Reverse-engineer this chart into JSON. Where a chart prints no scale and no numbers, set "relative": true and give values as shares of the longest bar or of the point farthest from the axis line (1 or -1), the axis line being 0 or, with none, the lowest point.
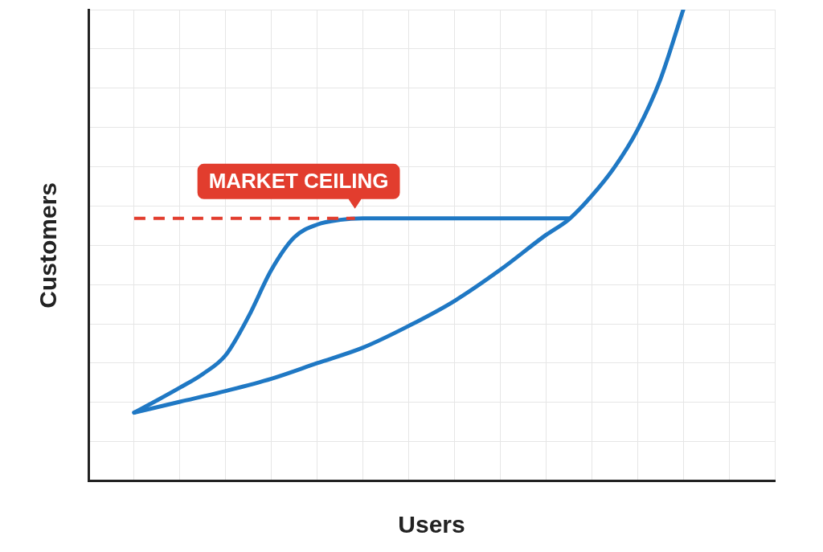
{
  "chart_data": {
    "type": "line",
    "relative": true,
    "xlabel": "Users",
    "ylabel": "Customers",
    "grid": true,
    "legend": false,
    "marker": "none",
    "categories": [
      null,
      null,
      null,
      null,
      null,
      null,
      null,
      null,
      null,
      null,
      null,
      null,
      null,
      null,
      null,
      null,
      null,
      null,
      null,
      null,
      null,
      null,
      null,
      null,
      null,
      null,
      null,
      null,
      null,
      null,
      null
    ],
    "series": [
      {
        "color": "#1f78c4",
        "values": [
          null,
          null,
          0.145,
          0.171,
          0.198,
          0.227,
          0.267,
          0.349,
          0.448,
          0.517,
          0.544,
          0.554,
          0.557,
          0.557,
          0.557,
          0.557,
          0.557,
          0.557,
          0.557,
          0.557,
          0.557,
          0.557,
          null,
          null,
          null,
          null,
          null,
          null,
          null,
          null,
          null
        ]
      },
      {
        "color": "#1f78c4",
        "values": [
          null,
          null,
          0.145,
          null,
          0.168,
          null,
          0.191,
          null,
          0.217,
          null,
          0.25,
          null,
          0.283,
          null,
          0.329,
          null,
          0.382,
          null,
          0.448,
          null,
          0.522,
          0.555,
          0.605,
          0.666,
          0.745,
          0.852,
          1,
          null,
          null,
          null,
          null
        ]
      }
    ],
    "ref_lines": [
      {
        "axis": "y",
        "value": 0.557,
        "label": "MARKET CEILING",
        "color": "#e23d2e",
        "line_style": "dashed"
      }
    ]
  }
}
